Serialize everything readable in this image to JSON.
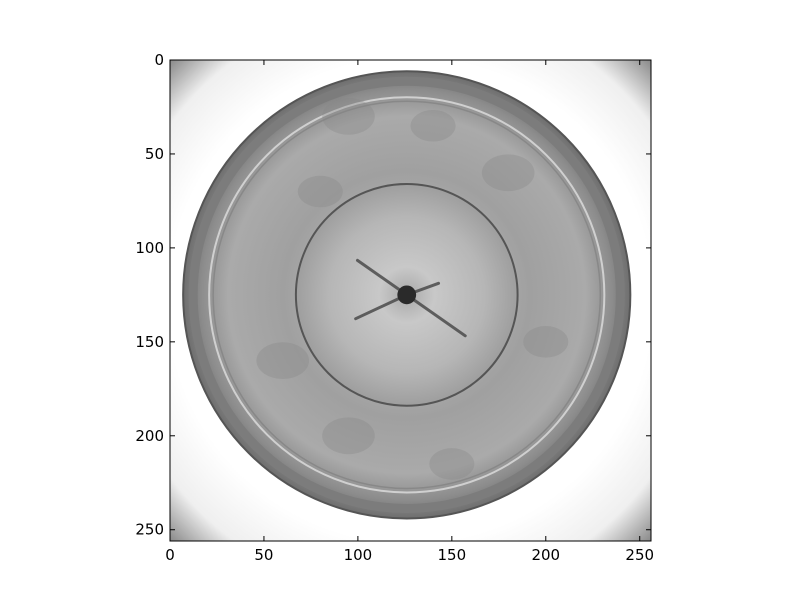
{
  "chart_data": {
    "type": "heatmap",
    "title": "",
    "xlabel": "",
    "ylabel": "",
    "colormap": "gray",
    "image_size": [
      256,
      256
    ],
    "xlim": [
      0,
      256
    ],
    "ylim": [
      256,
      0
    ],
    "x_ticks": [
      0,
      50,
      100,
      150,
      200,
      250
    ],
    "y_ticks": [
      0,
      50,
      100,
      150,
      200,
      250
    ],
    "x_tick_labels": [
      "0",
      "50",
      "100",
      "150",
      "200",
      "250"
    ],
    "y_tick_labels": [
      "0",
      "50",
      "100",
      "150",
      "200",
      "250"
    ],
    "grid": false,
    "image_description_values": {
      "center": [
        126,
        125
      ],
      "outer_disc_radius": 119,
      "inner_ring_radius": 59,
      "hub_radius": 5
    }
  }
}
